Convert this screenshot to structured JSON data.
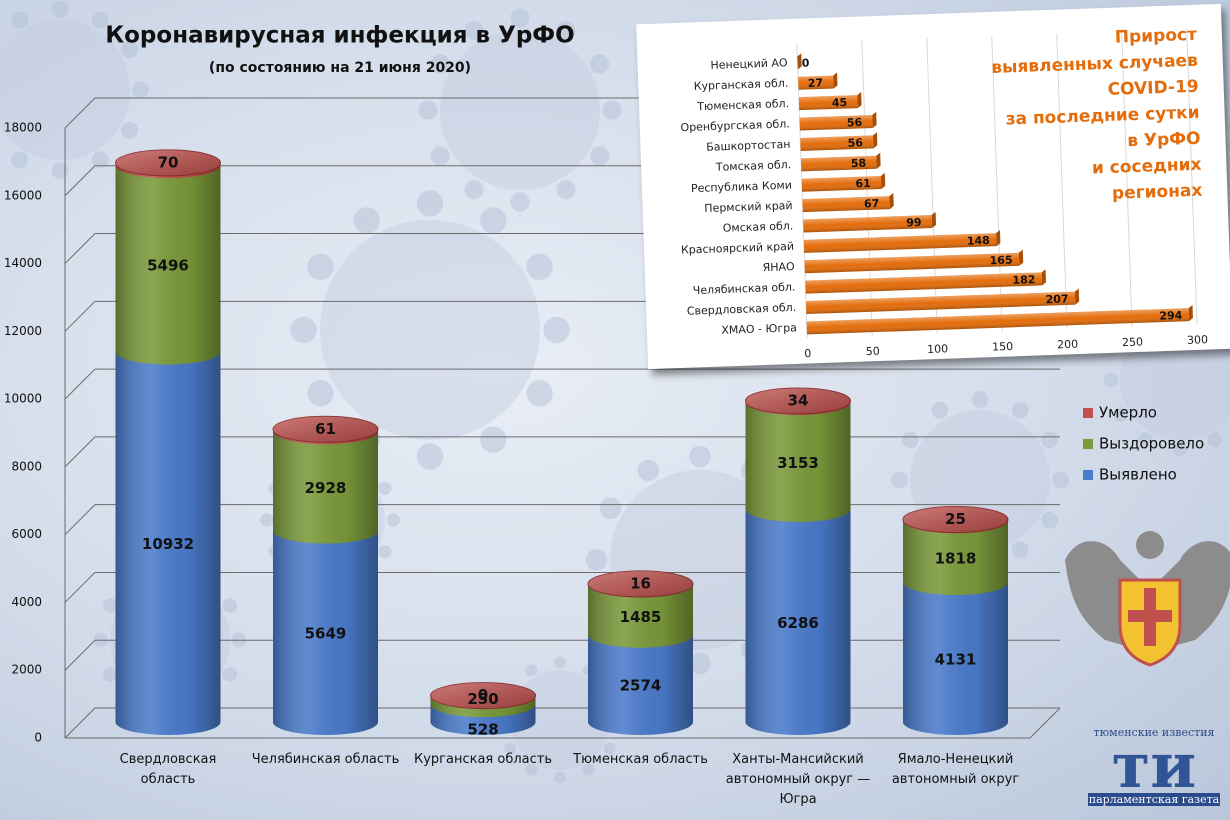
{
  "chart_data": [
    {
      "type": "bar",
      "stacked": true,
      "title": "Коронавирусная инфекция в УрФО",
      "subtitle": "(по состоянию на 21 июня 2020)",
      "categories": [
        "Свердловская область",
        "Челябинская область",
        "Курганская область",
        "Тюменская область",
        "Ханты-Мансийский автономный округ — Югра",
        "Ямало-Ненецкий автономный округ"
      ],
      "series": [
        {
          "name": "Выявлено",
          "color": "#4a7bcc",
          "values": [
            10932,
            5649,
            528,
            2574,
            6286,
            4131
          ]
        },
        {
          "name": "Выздоровело",
          "color": "#7a9a3a",
          "values": [
            5496,
            2928,
            250,
            1485,
            3153,
            1818
          ]
        },
        {
          "name": "Умерло",
          "color": "#c0504d",
          "values": [
            70,
            61,
            0,
            16,
            34,
            25
          ]
        }
      ],
      "ylim": [
        0,
        18000
      ],
      "yticks": [
        0,
        2000,
        4000,
        6000,
        8000,
        10000,
        12000,
        14000,
        16000,
        18000
      ],
      "grid": true,
      "legend": "right"
    },
    {
      "type": "barh",
      "title": [
        "Прирост",
        "выявленных случаев",
        "COVID-19",
        "за последние сутки",
        "в УрФО",
        "и соседних",
        "регионах"
      ],
      "categories": [
        "Ненецкий АО",
        "Курганская обл.",
        "Тюменская обл.",
        "Оренбургская обл.",
        "Башкортостан",
        "Томская обл.",
        "Республика Коми",
        "Пермский край",
        "Омская обл.",
        "Красноярский край",
        "ЯНАО",
        "Челябинская обл.",
        "Свердловская обл.",
        "ХМАО - Югра"
      ],
      "values": [
        0,
        27,
        45,
        56,
        56,
        58,
        61,
        67,
        99,
        148,
        165,
        182,
        207,
        294
      ],
      "color": "#e46c0a",
      "xlim": [
        0,
        300
      ],
      "xticks": [
        0,
        50,
        100,
        150,
        200,
        250,
        300
      ]
    }
  ],
  "logo": {
    "top": "тюменские известия",
    "mark": "ти",
    "bottom": "парламентская газета"
  }
}
